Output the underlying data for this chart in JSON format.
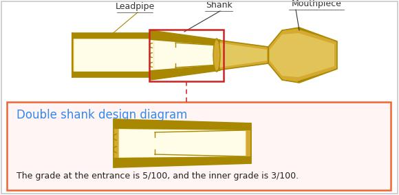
{
  "bg_color": "#ffffff",
  "border_color": "#c8c8c8",
  "label_leadpipe": "Leadpipe",
  "label_shank": "Shank",
  "label_mouthpiece": "Mouthpiece",
  "label_title": "Double shank design diagram",
  "label_caption": "The grade at the entrance is 5/100, and the inner grade is 3/100.",
  "title_color": "#3388ee",
  "label_color": "#333333",
  "caption_color": "#222222",
  "gold_dark": "#a88800",
  "gold_mid": "#d4aa30",
  "gold_light": "#eedd80",
  "gold_highlight": "#f8f4c0",
  "gold_inner": "#fffce8",
  "red_box": "#cc2222",
  "red_dashed": "#cc3333",
  "orange_box": "#ee6633",
  "lower_bg": "#fff5f5",
  "figsize": [
    5.8,
    2.83
  ],
  "dpi": 100
}
